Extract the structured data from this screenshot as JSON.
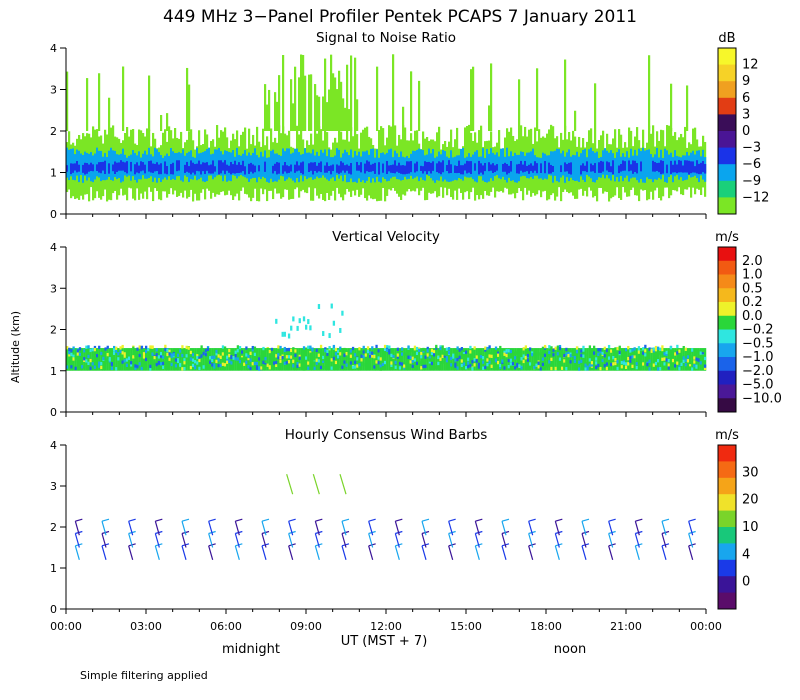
{
  "chart_data": [
    {
      "type": "heatmap",
      "title": "Signal to Noise Ratio",
      "ylabel": "Altitude (km)",
      "ylim": [
        0,
        4
      ],
      "yticks": [
        0,
        1,
        2,
        3,
        4
      ],
      "colorbar": {
        "unit": "dB",
        "labels": [
          "12",
          "9",
          "6",
          "3",
          "0",
          "−3",
          "−6",
          "−9",
          "−12"
        ],
        "colors": [
          "#f7f72a",
          "#f6d227",
          "#f0a020",
          "#e23d14",
          "#3a0d58",
          "#4a1595",
          "#1a33e8",
          "#0aa5ee",
          "#1ad07a",
          "#7be625"
        ]
      },
      "description_bands": [
        {
          "alt_low": 0.3,
          "alt_high": 2.0,
          "value_db": -12
        },
        {
          "alt_low": 0.7,
          "alt_high": 1.6,
          "value_db": -6
        },
        {
          "alt_low": 0.9,
          "alt_high": 1.35,
          "value_db": -3
        }
      ]
    },
    {
      "type": "heatmap",
      "title": "Vertical Velocity",
      "ylabel": "Altitude (km)",
      "ylim": [
        0,
        4
      ],
      "yticks": [
        0,
        1,
        2,
        3,
        4
      ],
      "colorbar": {
        "unit": "m/s",
        "labels": [
          "2.0",
          "1.0",
          "0.5",
          "0.2",
          "0.0",
          "−0.2",
          "−0.5",
          "−1.0",
          "−2.0",
          "−5.0",
          "−10.0"
        ],
        "colors": [
          "#e81010",
          "#f25a12",
          "#f58a18",
          "#f5b81c",
          "#eef22a",
          "#2ad63a",
          "#2fe6e0",
          "#18a6ee",
          "#1a63ea",
          "#2020c0",
          "#4a1898",
          "#360a44"
        ]
      }
    },
    {
      "type": "scatter",
      "title": "Hourly Consensus Wind Barbs",
      "ylabel": "Altitude (km)",
      "ylim": [
        0,
        4
      ],
      "yticks": [
        0,
        1,
        2,
        3,
        4
      ],
      "colorbar": {
        "unit": "m/s",
        "labels": [
          "30",
          "20",
          "10",
          "4",
          "0"
        ],
        "colors": [
          "#f02a10",
          "#f56a14",
          "#f5a418",
          "#f0e22a",
          "#7ad42a",
          "#18c87a",
          "#18a6ee",
          "#1a3ae8",
          "#3a1498",
          "#5a0c6a"
        ]
      },
      "barb_hours": [
        0.5,
        1.5,
        2.5,
        3.5,
        4.5,
        5.5,
        6.5,
        7.5,
        8.5,
        9.5,
        10.5,
        11.5,
        12.5,
        13.5,
        14.5,
        15.5,
        16.5,
        17.5,
        18.5,
        19.5,
        20.5,
        21.5,
        22.5,
        23.5
      ]
    }
  ],
  "figure": {
    "title": "449 MHz 3−Panel Profiler Pentek PCAPS  7 January 2011",
    "ylabel": "Altitude (km)",
    "xlabel": "UT  (MST + 7)",
    "xlim": [
      0,
      24
    ],
    "xtick_labels": [
      "00:00",
      "03:00",
      "06:00",
      "09:00",
      "12:00",
      "15:00",
      "18:00",
      "21:00",
      "00:00"
    ],
    "midnight_label": "midnight",
    "noon_label": "noon",
    "footnote": "Simple filtering applied",
    "y_tick_labels": [
      "0",
      "1",
      "2",
      "3",
      "4"
    ]
  }
}
